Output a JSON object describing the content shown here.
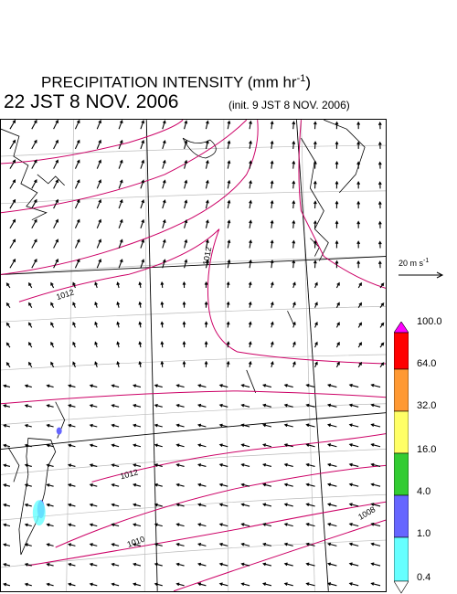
{
  "header": {
    "title": "PRECIPITATION INTENSITY (mm hr",
    "title_unit_sup": "-1",
    "title_close": ")",
    "valid_time": "22 JST 8 NOV. 2006",
    "init_time": "(init. 9 JST 8 NOV. 2006)"
  },
  "wind_scale": {
    "label": "20 m s",
    "label_sup": "-1"
  },
  "legend": {
    "levels": [
      "100.0",
      "64.0",
      "32.0",
      "16.0",
      "4.0",
      "1.0",
      "0.4"
    ],
    "colors": [
      "#ff00ff",
      "#ff0000",
      "#ff9933",
      "#ffff66",
      "#33cc33",
      "#6666ff",
      "#66ffff",
      "#ffffff"
    ]
  },
  "isobars": {
    "labels": [
      "1012",
      "1012",
      "1012",
      "1010",
      "1008"
    ],
    "color": "#cc0066"
  }
}
